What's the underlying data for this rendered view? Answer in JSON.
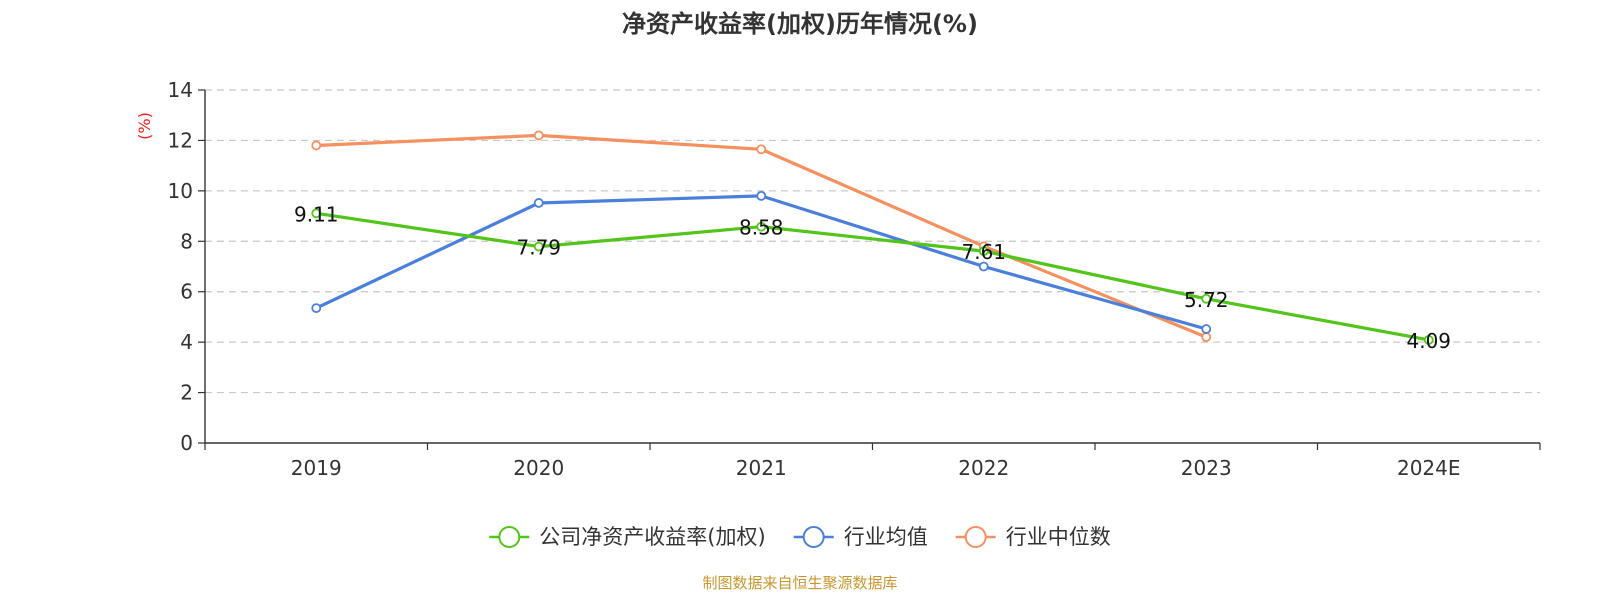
{
  "chart_data": {
    "type": "line",
    "title": "净资产收益率(加权)历年情况(%)",
    "ylabel": "(%)",
    "xlabel": "",
    "categories": [
      "2019",
      "2020",
      "2021",
      "2022",
      "2023",
      "2024E"
    ],
    "ylim": [
      0,
      14
    ],
    "yticks": [
      0,
      2,
      4,
      6,
      8,
      10,
      12,
      14
    ],
    "grid": true,
    "legend_position": "bottom",
    "series": [
      {
        "name": "公司净资产收益率(加权)",
        "color": "#52c41a",
        "values": [
          9.11,
          7.79,
          8.58,
          7.61,
          5.72,
          4.09
        ],
        "labels": [
          "9.11",
          "7.79",
          "8.58",
          "7.61",
          "5.72",
          "4.09"
        ]
      },
      {
        "name": "行业均值",
        "color": "#4a7fdb",
        "values": [
          5.35,
          9.52,
          9.8,
          7.0,
          4.52,
          null
        ]
      },
      {
        "name": "行业中位数",
        "color": "#f6905e",
        "values": [
          11.8,
          12.2,
          11.65,
          7.8,
          4.2,
          null
        ]
      }
    ]
  },
  "footer": {
    "source": "制图数据来自恒生聚源数据库"
  }
}
